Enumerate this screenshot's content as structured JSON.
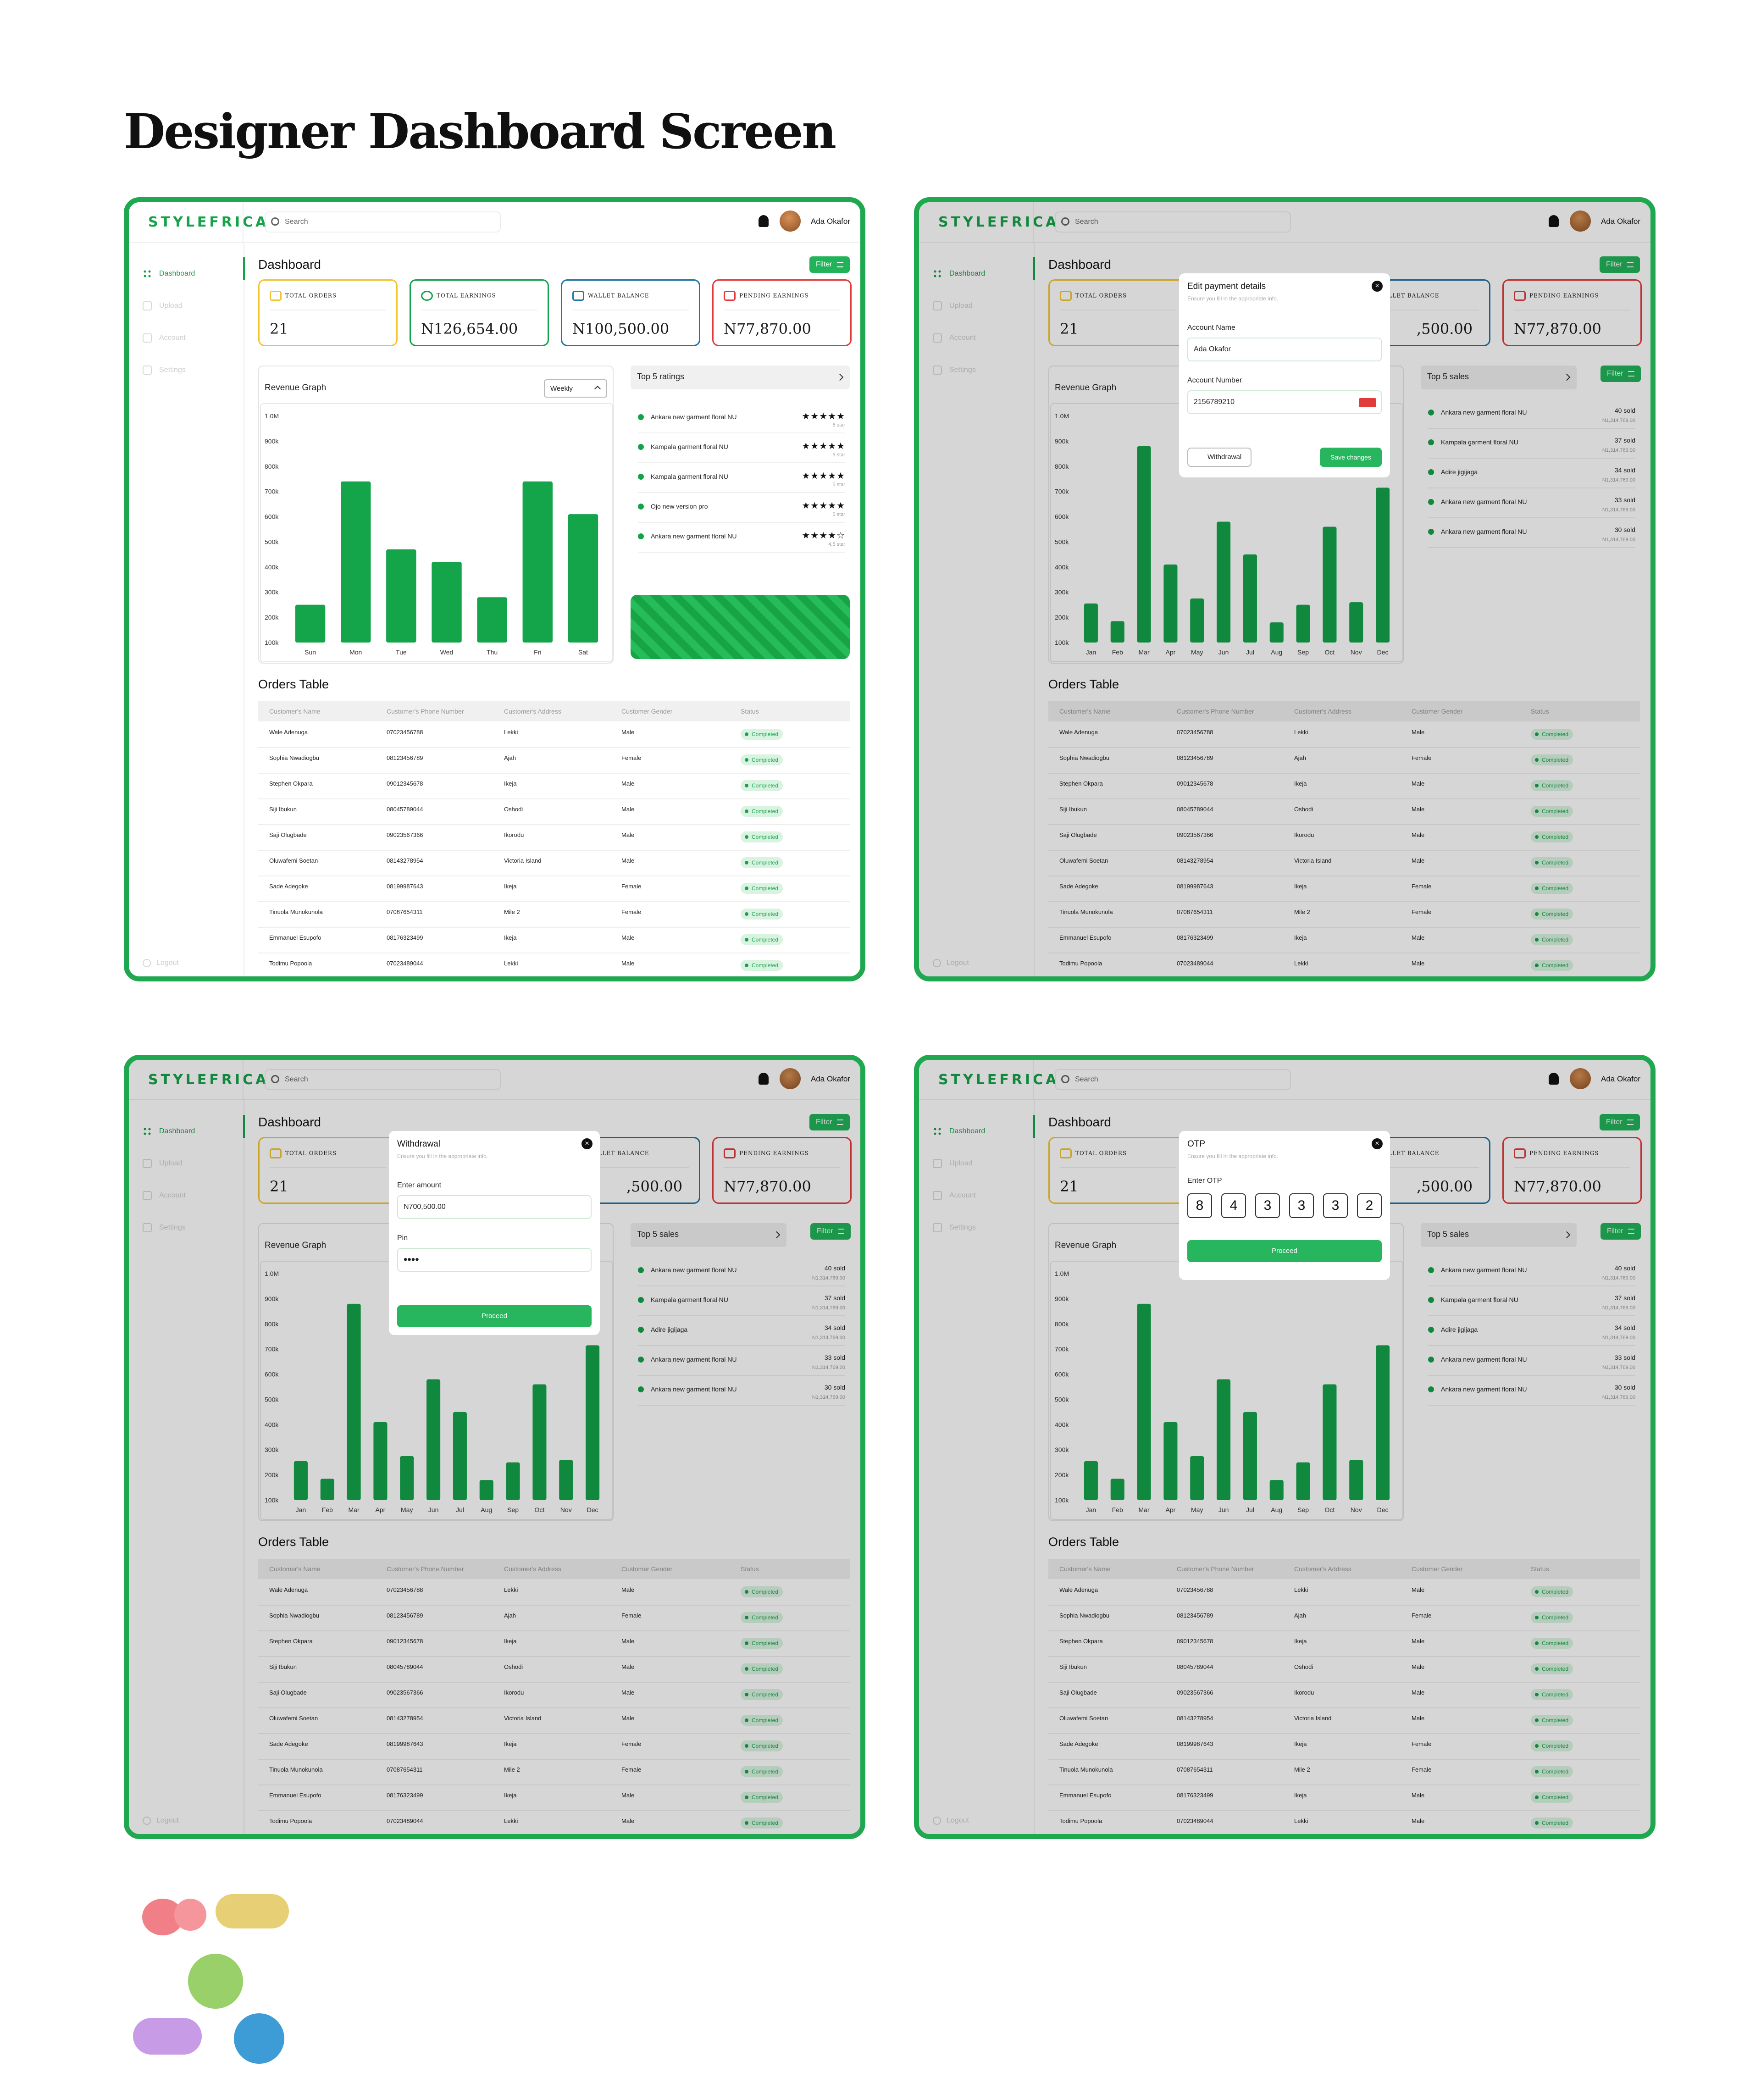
{
  "page_title": "Designer Dashboard Screen",
  "brand": "STYLEFRICA",
  "search_placeholder": "Search",
  "user_name": "Ada Okafor",
  "sidebar": {
    "items": [
      "Dashboard",
      "Upload",
      "Account",
      "Settings"
    ],
    "logout": "Logout"
  },
  "dashboard_title": "Dashboard",
  "filter_label": "Filter",
  "cards": {
    "orders": {
      "label": "TOTAL ORDERS",
      "value": "21"
    },
    "earnings": {
      "label": "TOTAL EARNINGS",
      "value": "N126,654.00"
    },
    "wallet": {
      "label": "WALLET BALANCE",
      "value": "N100,500.00",
      "value_cut": ",500.00"
    },
    "pending": {
      "label": "PENDING EARNINGS",
      "value": "N77,870.00"
    }
  },
  "revenue_title": "Revenue Graph",
  "period_select": "Weekly",
  "y_ticks": [
    "1.0M",
    "900k",
    "800k",
    "700k",
    "600k",
    "500k",
    "400k",
    "300k",
    "200k",
    "100k"
  ],
  "chart_data": [
    {
      "type": "bar",
      "categories": [
        "Sun",
        "Mon",
        "Tue",
        "Wed",
        "Thu",
        "Fri",
        "Sat"
      ],
      "values": [
        250000,
        740000,
        470000,
        420000,
        280000,
        740000,
        610000
      ],
      "ylim": [
        100000,
        1000000
      ],
      "title": "Revenue Graph"
    },
    {
      "type": "bar",
      "categories": [
        "Jan",
        "Feb",
        "Mar",
        "Apr",
        "May",
        "Jun",
        "Jul",
        "Aug",
        "Sep",
        "Oct",
        "Nov",
        "Dec"
      ],
      "values": [
        255000,
        185000,
        880000,
        410000,
        275000,
        580000,
        450000,
        180000,
        250000,
        560000,
        260000,
        715000
      ],
      "ylim": [
        100000,
        1000000
      ],
      "title": "Revenue Graph"
    }
  ],
  "top_ratings": {
    "title": "Top 5 ratings",
    "items": [
      {
        "name": "Ankara new garment floral NU",
        "stars": "★★★★★",
        "sub": "5 star"
      },
      {
        "name": "Kampala garment floral NU",
        "stars": "★★★★★",
        "sub": "5 star"
      },
      {
        "name": "Kampala garment floral NU",
        "stars": "★★★★★",
        "sub": "5 star"
      },
      {
        "name": "Ojo new version pro",
        "stars": "★★★★★",
        "sub": "5 star"
      },
      {
        "name": "Ankara new garment floral NU",
        "stars": "★★★★☆",
        "sub": "4.5 star"
      }
    ]
  },
  "top_sales": {
    "title": "Top 5 sales",
    "items": [
      {
        "name": "Ankara new garment floral NU",
        "sold": "40 sold",
        "sub": "N1,314,769.00"
      },
      {
        "name": "Kampala garment floral NU",
        "sold": "37 sold",
        "sub": "N1,314,769.00"
      },
      {
        "name": "Adire jigijaga",
        "sold": "34 sold",
        "sub": "N1,314,769.00"
      },
      {
        "name": "Ankara new garment floral NU",
        "sold": "33 sold",
        "sub": "N1,314,769.00"
      },
      {
        "name": "Ankara new garment floral NU",
        "sold": "30 sold",
        "sub": "N1,314,769.00"
      }
    ]
  },
  "orders_title": "Orders Table",
  "columns": [
    "Customer's Name",
    "Customer's Phone Number",
    "Customer's Address",
    "Customer Gender",
    "Status"
  ],
  "orders": [
    [
      "Wale Adenuga",
      "07023456788",
      "Lekki",
      "Male",
      "Completed"
    ],
    [
      "Sophia Nwadiogbu",
      "08123456789",
      "Ajah",
      "Female",
      "Completed"
    ],
    [
      "Stephen Okpara",
      "09012345678",
      "Ikeja",
      "Male",
      "Completed"
    ],
    [
      "Siji Ibukun",
      "08045789044",
      "Oshodi",
      "Male",
      "Completed"
    ],
    [
      "Saji Olugbade",
      "09023567366",
      "Ikorodu",
      "Male",
      "Completed"
    ],
    [
      "Oluwafemi Soetan",
      "08143278954",
      "Victoria Island",
      "Male",
      "Completed"
    ],
    [
      "Sade Adegoke",
      "08199987643",
      "Ikeja",
      "Female",
      "Completed"
    ],
    [
      "Tinuola Munokunola",
      "07087654311",
      "Mile 2",
      "Female",
      "Completed"
    ],
    [
      "Emmanuel Esupofo",
      "08176323499",
      "Ikeja",
      "Male",
      "Completed"
    ],
    [
      "Todimu Popoola",
      "07023489044",
      "Lekki",
      "Male",
      "Completed"
    ]
  ],
  "modals": {
    "payment": {
      "title": "Edit payment details",
      "subtitle": "Ensure you fill in the appropriate info.",
      "account_name_label": "Account Name",
      "account_name": "Ada Okafor",
      "account_number_label": "Account Number",
      "account_number": "2156789210",
      "withdrawal": "Withdrawal",
      "save": "Save changes"
    },
    "withdrawal": {
      "title": "Withdrawal",
      "subtitle": "Ensure you fill in the appropriate info.",
      "amount_label": "Enter amount",
      "amount": "N700,500.00",
      "pin_label": "Pin",
      "pin": "••••",
      "proceed": "Proceed"
    },
    "otp": {
      "title": "OTP",
      "subtitle": "Ensure you fill in the appropriate info.",
      "label": "Enter OTP",
      "digits": [
        "8",
        "4",
        "3",
        "3",
        "3",
        "2"
      ],
      "proceed": "Proceed"
    }
  }
}
